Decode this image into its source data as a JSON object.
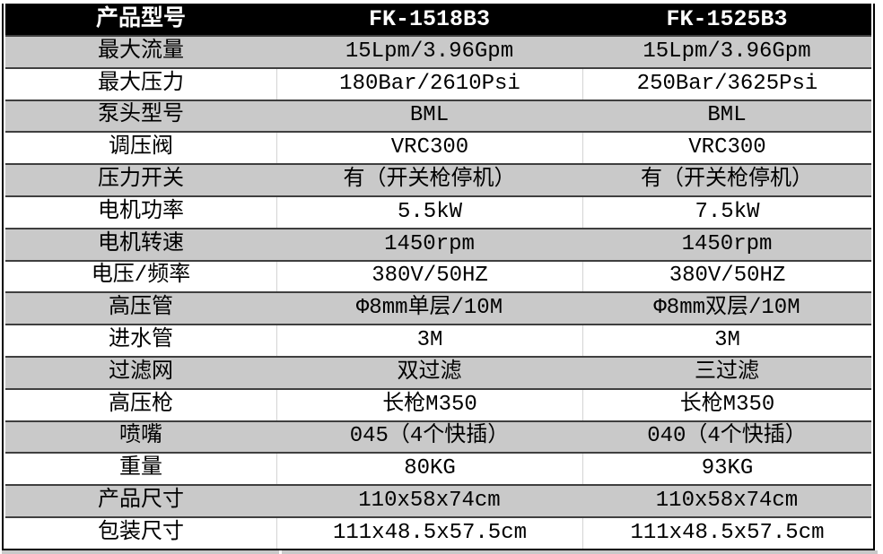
{
  "table": {
    "header": {
      "model_label": "产品型号",
      "model_1": "FK-1518B3",
      "model_2": "FK-1525B3"
    },
    "rows": [
      {
        "label": "最大流量",
        "model1": "15Lpm/3.96Gpm",
        "model2": "15Lpm/3.96Gpm"
      },
      {
        "label": "最大压力",
        "model1": "180Bar/2610Psi",
        "model2": "250Bar/3625Psi"
      },
      {
        "label": "泵头型号",
        "model1": "BML",
        "model2": "BML"
      },
      {
        "label": "调压阀",
        "model1": "VRC300",
        "model2": "VRC300"
      },
      {
        "label": "压力开关",
        "model1": "有（开关枪停机）",
        "model2": "有（开关枪停机）"
      },
      {
        "label": "电机功率",
        "model1": "5.5kW",
        "model2": "7.5kW"
      },
      {
        "label": "电机转速",
        "model1": "1450rpm",
        "model2": "1450rpm"
      },
      {
        "label": "电压/频率",
        "model1": "380V/50HZ",
        "model2": "380V/50HZ"
      },
      {
        "label": "高压管",
        "model1": "Φ8mm单层/10M",
        "model2": "Φ8mm双层/10M"
      },
      {
        "label": "进水管",
        "model1": "3M",
        "model2": "3M"
      },
      {
        "label": "过滤网",
        "model1": "双过滤",
        "model2": "三过滤"
      },
      {
        "label": "高压枪",
        "model1": "长枪M350",
        "model2": "长枪M350"
      },
      {
        "label": "喷嘴",
        "model1": "045（4个快插）",
        "model2": "040（4个快插）"
      },
      {
        "label": "重量",
        "model1": "80KG",
        "model2": "93KG"
      },
      {
        "label": "产品尺寸",
        "model1": "110x58x74cm",
        "model2": "110x58x74cm"
      },
      {
        "label": "包装尺寸",
        "model1": "111x48.5x57.5cm",
        "model2": "111x48.5x57.5cm"
      }
    ],
    "colors": {
      "header_bg": "#000000",
      "header_text": "#ffffff",
      "alt_row_bg": "#c9c9c9",
      "row_bg": "#ffffff",
      "row_separator": "#3f3f3f",
      "grid_divider": "#d4d4d4",
      "outer_border": "#000000",
      "cell_text": "#000000"
    }
  }
}
